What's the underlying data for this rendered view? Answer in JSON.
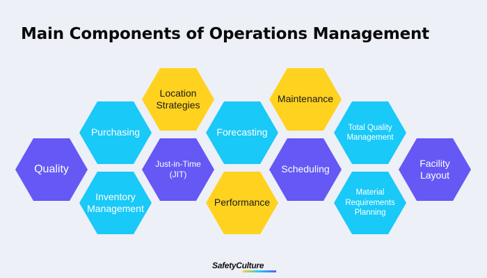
{
  "title": "Main Components of Operations Management",
  "hexagons": [
    {
      "label": "Quality",
      "color": "#6558f5"
    },
    {
      "label": "Purchasing",
      "color": "#19c9f7"
    },
    {
      "label": "Inventory Management",
      "color": "#19c9f7"
    },
    {
      "label": "Location Strategies",
      "color": "#ffd21f"
    },
    {
      "label": "Just-in-Time (JIT)",
      "color": "#6558f5"
    },
    {
      "label": "Forecasting",
      "color": "#19c9f7"
    },
    {
      "label": "Performance",
      "color": "#ffd21f"
    },
    {
      "label": "Maintenance",
      "color": "#ffd21f"
    },
    {
      "label": "Scheduling",
      "color": "#6558f5"
    },
    {
      "label": "Total Quality Management",
      "color": "#19c9f7"
    },
    {
      "label": "Material Requirements Planning",
      "color": "#19c9f7"
    },
    {
      "label": "Facility Layout",
      "color": "#6558f5"
    }
  ],
  "logo": {
    "text": "SafetyCulture"
  }
}
